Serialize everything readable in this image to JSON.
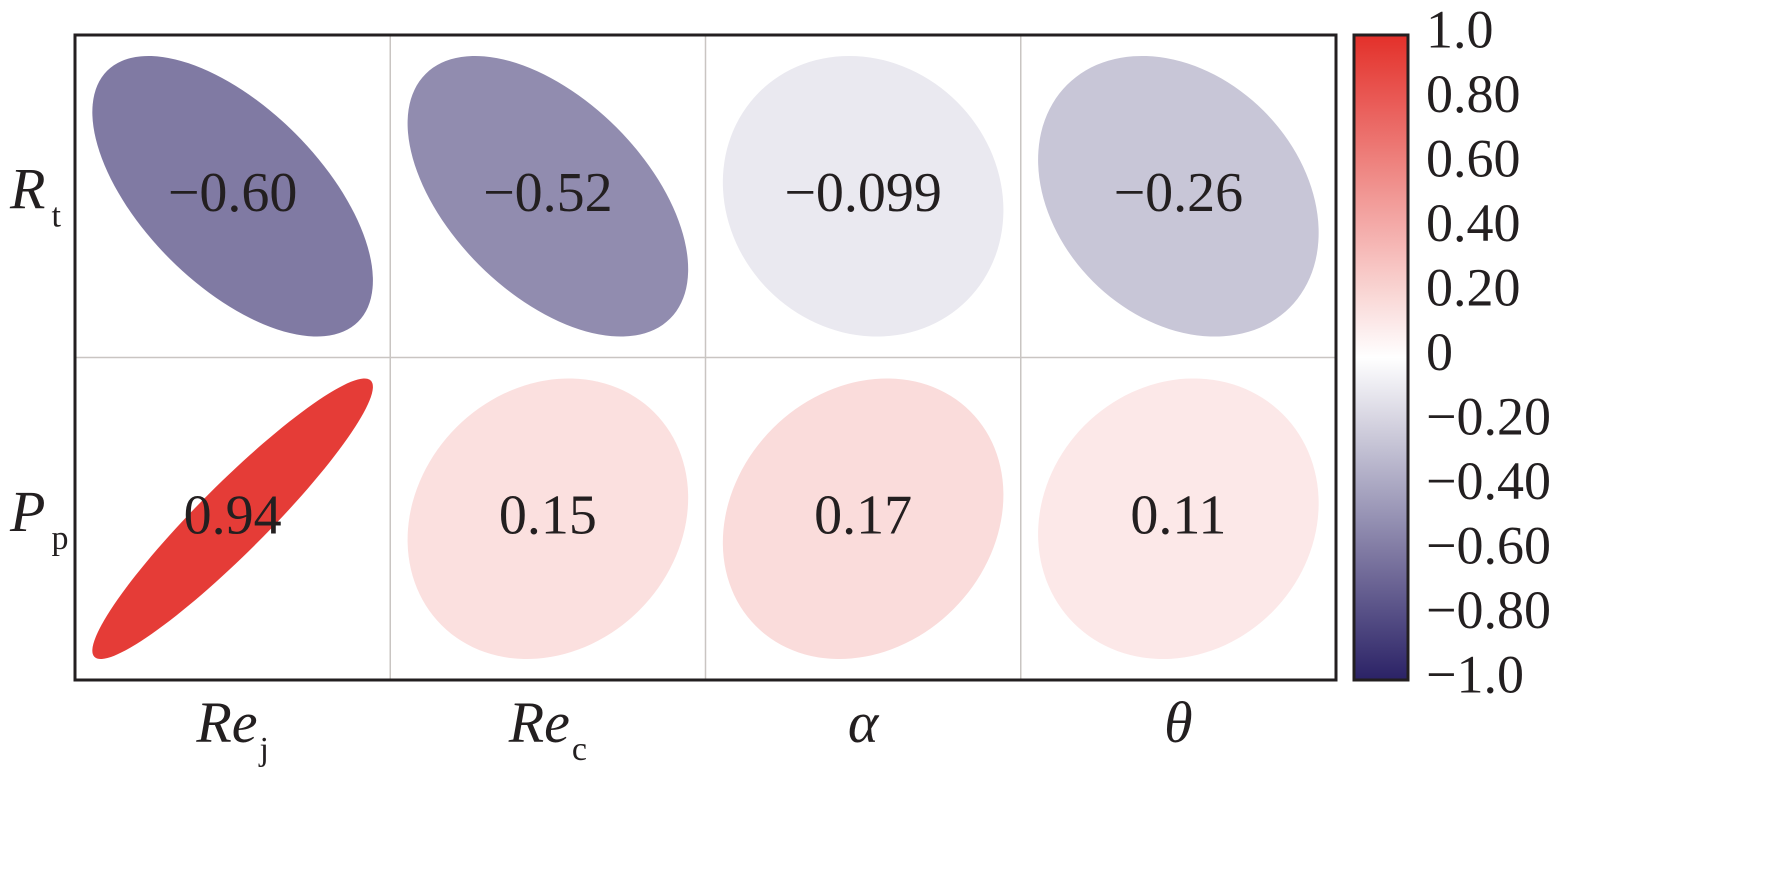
{
  "chart_data": {
    "type": "heatmap",
    "style": "ellipse correlation matrix",
    "rows": [
      {
        "main": "R",
        "sub": "t"
      },
      {
        "main": "P",
        "sub": "p"
      }
    ],
    "columns": [
      {
        "main": "Re",
        "sub": "j"
      },
      {
        "main": "Re",
        "sub": "c"
      },
      {
        "main": "α",
        "sub": ""
      },
      {
        "main": "θ",
        "sub": ""
      }
    ],
    "values": [
      [
        -0.6,
        -0.52,
        -0.099,
        -0.26
      ],
      [
        0.94,
        0.15,
        0.17,
        0.11
      ]
    ],
    "value_labels": [
      [
        "−0.60",
        "−0.52",
        "−0.099",
        "−0.26"
      ],
      [
        "0.94",
        "0.15",
        "0.17",
        "0.11"
      ]
    ],
    "colorbar": {
      "range": [
        -1.0,
        1.0
      ],
      "ticks": [
        1.0,
        0.8,
        0.6,
        0.4,
        0.2,
        0,
        -0.2,
        -0.4,
        -0.6,
        -0.8,
        -1.0
      ],
      "tick_labels": [
        "1.0",
        "0.80",
        "0.60",
        "0.40",
        "0.20",
        "0",
        "−0.20",
        "−0.40",
        "−0.60",
        "−0.80",
        "−1.0"
      ],
      "colors": {
        "negative": "#2b2266",
        "zero": "#ffffff",
        "positive": "#e3302a"
      }
    },
    "grid": true,
    "legend_position": "right"
  }
}
